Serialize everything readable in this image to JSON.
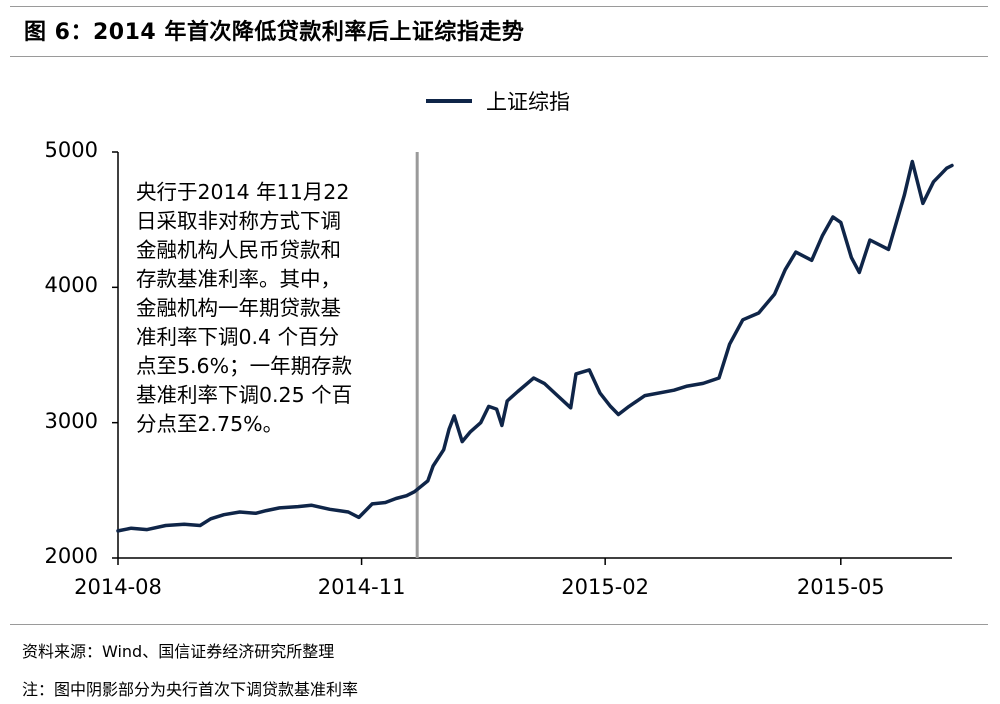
{
  "figure": {
    "title": "图 6：2014 年首次降低贷款利率后上证综指走势",
    "source": "资料来源：Wind、国信证券经济研究所整理",
    "note": "注：图中阴影部分为央行首次下调贷款基准利率"
  },
  "annotation": {
    "lines": [
      "央行于2014 年11月22",
      "日采取非对称方式下调",
      "金融机构人民币贷款和",
      "存款基准利率。其中，",
      "金融机构一年期贷款基",
      "准利率下调0.4 个百分",
      "点至5.6%；一年期存款",
      "基准利率下调0.25 个百",
      "分点至2.75%。"
    ]
  },
  "colors": {
    "series": "#0f2548",
    "axis": "#000000",
    "marker_line": "#9a9a9a"
  },
  "chart_data": {
    "type": "line",
    "title": "图 6：2014 年首次降低贷款利率后上证综指走势",
    "xlabel": "",
    "ylabel": "",
    "ylim": [
      2000,
      5000
    ],
    "yticks": [
      2000,
      3000,
      4000,
      5000
    ],
    "xticks": [
      "2014-08",
      "2014-11",
      "2015-02",
      "2015-05"
    ],
    "xlim": [
      "2014-08-01",
      "2015-06-12"
    ],
    "grid": false,
    "legend": {
      "placement": "top-center",
      "entries": [
        "上证综指"
      ]
    },
    "event_marker": {
      "date": "2014-11-22",
      "style": "vertical-line"
    },
    "series": [
      {
        "name": "上证综指",
        "x": [
          "2014-08-01",
          "2014-08-06",
          "2014-08-12",
          "2014-08-19",
          "2014-08-26",
          "2014-09-01",
          "2014-09-05",
          "2014-09-10",
          "2014-09-16",
          "2014-09-22",
          "2014-09-26",
          "2014-10-01",
          "2014-10-08",
          "2014-10-13",
          "2014-10-20",
          "2014-10-27",
          "2014-10-31",
          "2014-11-05",
          "2014-11-10",
          "2014-11-14",
          "2014-11-18",
          "2014-11-21",
          "2014-11-26",
          "2014-11-28",
          "2014-12-02",
          "2014-12-04",
          "2014-12-06",
          "2014-12-09",
          "2014-12-12",
          "2014-12-16",
          "2014-12-19",
          "2014-12-22",
          "2014-12-24",
          "2014-12-26",
          "2014-12-30",
          "2015-01-05",
          "2015-01-09",
          "2015-01-14",
          "2015-01-19",
          "2015-01-21",
          "2015-01-26",
          "2015-01-30",
          "2015-02-03",
          "2015-02-06",
          "2015-02-10",
          "2015-02-16",
          "2015-02-27",
          "2015-03-04",
          "2015-03-10",
          "2015-03-16",
          "2015-03-20",
          "2015-03-25",
          "2015-03-31",
          "2015-04-06",
          "2015-04-10",
          "2015-04-14",
          "2015-04-20",
          "2015-04-24",
          "2015-04-28",
          "2015-05-01",
          "2015-05-05",
          "2015-05-08",
          "2015-05-12",
          "2015-05-19",
          "2015-05-25",
          "2015-05-28",
          "2015-06-01",
          "2015-06-05",
          "2015-06-08",
          "2015-06-10",
          "2015-06-12"
        ],
        "values": [
          2200,
          2220,
          2210,
          2240,
          2250,
          2240,
          2290,
          2320,
          2340,
          2330,
          2350,
          2370,
          2380,
          2390,
          2360,
          2340,
          2300,
          2400,
          2410,
          2440,
          2460,
          2490,
          2570,
          2680,
          2800,
          2950,
          3050,
          2860,
          2930,
          3000,
          3120,
          3100,
          2980,
          3160,
          3230,
          3330,
          3290,
          3200,
          3110,
          3360,
          3390,
          3220,
          3120,
          3060,
          3120,
          3200,
          3240,
          3270,
          3290,
          3330,
          3580,
          3760,
          3810,
          3950,
          4130,
          4260,
          4200,
          4380,
          4520,
          4480,
          4220,
          4110,
          4350,
          4280,
          4680,
          4930,
          4620,
          4780,
          4840,
          4880,
          4900
        ]
      }
    ]
  }
}
